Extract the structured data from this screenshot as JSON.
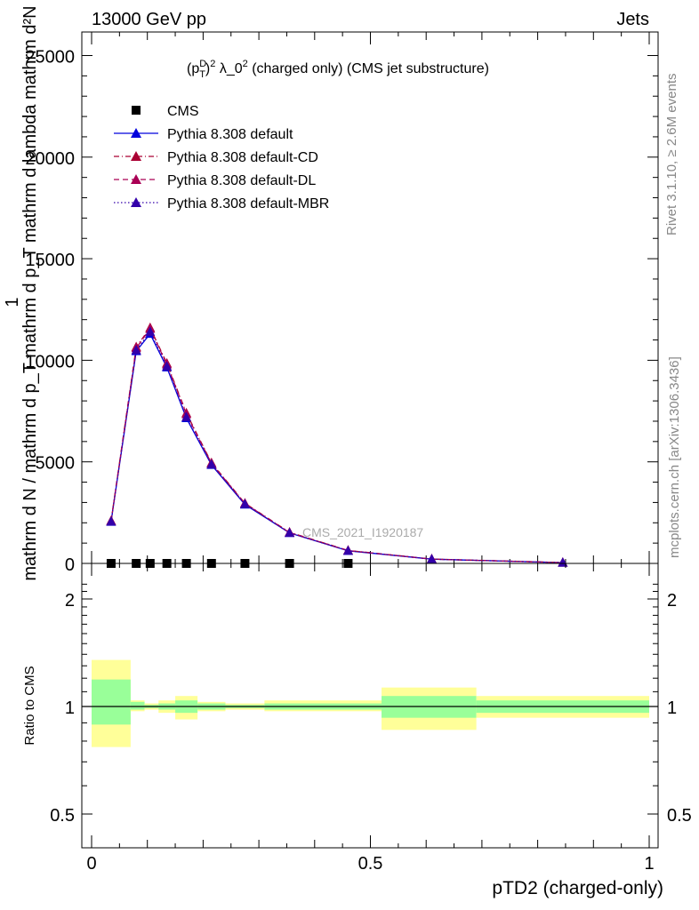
{
  "header": {
    "left": "13000 GeV pp",
    "right": "Jets"
  },
  "side_labels": {
    "rivet": "Rivet 3.1.10, ≥ 2.6M events",
    "mcplots": "mcplots.cern.ch [arXiv:1306.3436]"
  },
  "plot_title": "(p_T^D)^2 λ_0^2 (charged only) (CMS jet substructure)",
  "watermark": "CMS_2021_I1920187",
  "colors": {
    "cms": "#000000",
    "default": "#0000dd",
    "default_cd": "#aa0033",
    "default_dl": "#aa0055",
    "default_mbr": "#3300aa",
    "band_yellow": "#ffff99",
    "band_green": "#99ff99"
  },
  "chart_data": [
    {
      "type": "line",
      "panel": "main",
      "ylabel": "1 / mathrm d N / mathrm d p_T mathrm d p_T mathrm d lambda · mathrm d^2N",
      "xlabel": "",
      "xlim": [
        0,
        1
      ],
      "ylim": [
        0,
        26000
      ],
      "yticks": [
        0,
        5000,
        10000,
        15000,
        20000,
        25000
      ],
      "yticklabels": [
        "0",
        "5000",
        "10000",
        "15000",
        "20000",
        "25000"
      ],
      "legend_position": "top-left",
      "x": [
        0.035,
        0.08,
        0.105,
        0.135,
        0.17,
        0.215,
        0.275,
        0.355,
        0.46,
        0.61,
        0.845
      ],
      "series": [
        {
          "name": "CMS",
          "marker": "square",
          "values": [
            0,
            0,
            0,
            0,
            0,
            0,
            0,
            0,
            0,
            null,
            null
          ]
        },
        {
          "name": "Pythia 8.308 default",
          "marker": "triangle",
          "dash": "solid",
          "values": [
            2050,
            10450,
            11300,
            9650,
            7150,
            4850,
            2900,
            1500,
            620,
            210,
            40
          ]
        },
        {
          "name": "Pythia 8.308 default-CD",
          "marker": "triangle",
          "dash": "dashdot",
          "values": [
            2100,
            10650,
            11600,
            9850,
            7400,
            4950,
            2960,
            1530,
            640,
            215,
            42
          ]
        },
        {
          "name": "Pythia 8.308 default-DL",
          "marker": "triangle",
          "dash": "dashed",
          "values": [
            2080,
            10600,
            11550,
            9800,
            7350,
            4920,
            2950,
            1520,
            635,
            212,
            41
          ]
        },
        {
          "name": "Pythia 8.308 default-MBR",
          "marker": "triangle",
          "dash": "dotted",
          "values": [
            2060,
            10500,
            11400,
            9700,
            7200,
            4870,
            2920,
            1505,
            625,
            210,
            40
          ]
        }
      ]
    },
    {
      "type": "area",
      "panel": "ratio",
      "xlabel": "pTD2 (charged-only)",
      "ylabel": "Ratio to CMS",
      "xlim": [
        0,
        1
      ],
      "ylim": [
        0.4,
        2.3
      ],
      "xticks": [
        0,
        0.5,
        1
      ],
      "xticklabels": [
        "0",
        "0.5",
        "1"
      ],
      "yticks": [
        0.5,
        1,
        2
      ],
      "yticklabels": [
        "0.5",
        "1",
        "2"
      ],
      "bins": [
        {
          "lo": 0.0,
          "hi": 0.07,
          "yellow": [
            0.77,
            1.35
          ],
          "green": [
            0.89,
            1.19
          ]
        },
        {
          "lo": 0.07,
          "hi": 0.095,
          "yellow": [
            0.97,
            1.04
          ],
          "green": [
            0.98,
            1.03
          ]
        },
        {
          "lo": 0.095,
          "hi": 0.12,
          "yellow": [
            0.98,
            1.02
          ],
          "green": [
            0.99,
            1.01
          ]
        },
        {
          "lo": 0.12,
          "hi": 0.15,
          "yellow": [
            0.96,
            1.04
          ],
          "green": [
            0.98,
            1.02
          ]
        },
        {
          "lo": 0.15,
          "hi": 0.19,
          "yellow": [
            0.92,
            1.07
          ],
          "green": [
            0.96,
            1.04
          ]
        },
        {
          "lo": 0.19,
          "hi": 0.24,
          "yellow": [
            0.97,
            1.03
          ],
          "green": [
            0.98,
            1.02
          ]
        },
        {
          "lo": 0.24,
          "hi": 0.31,
          "yellow": [
            0.98,
            1.02
          ],
          "green": [
            0.99,
            1.01
          ]
        },
        {
          "lo": 0.31,
          "hi": 0.52,
          "yellow": [
            0.97,
            1.04
          ],
          "green": [
            0.98,
            1.02
          ]
        },
        {
          "lo": 0.52,
          "hi": 0.69,
          "yellow": [
            0.86,
            1.13
          ],
          "green": [
            0.93,
            1.07
          ]
        },
        {
          "lo": 0.69,
          "hi": 1.0,
          "yellow": [
            0.93,
            1.07
          ],
          "green": [
            0.96,
            1.04
          ]
        }
      ],
      "reference_line": 1
    }
  ]
}
